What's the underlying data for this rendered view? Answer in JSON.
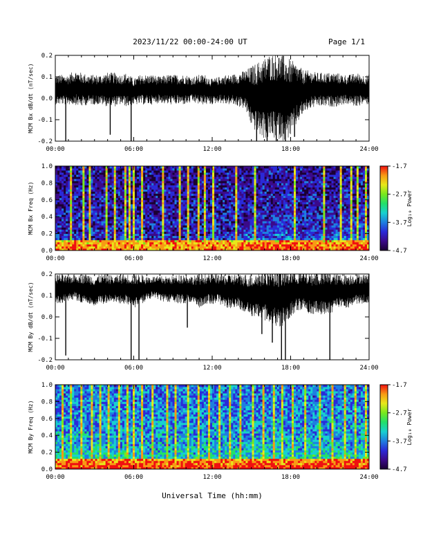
{
  "header": {
    "title": "2023/11/22  00:00-24:00 UT",
    "page": "Page 1/1"
  },
  "footer": {
    "xlabel": "Universal Time (hh:mm)"
  },
  "colors": {
    "trace": "#000000",
    "axis": "#000000",
    "background": "#ffffff"
  },
  "colorbar_colors": [
    "#1a0033",
    "#3b0a8a",
    "#2a2ad8",
    "#1e7fe0",
    "#18d0d0",
    "#22e06a",
    "#78e81e",
    "#e8e81a",
    "#f89a14",
    "#f01010"
  ],
  "chart_data": [
    {
      "type": "line",
      "ylabel": "MCM Bx dB/dt (nT/sec)",
      "xlim": [
        0,
        24
      ],
      "ylim": [
        -0.2,
        0.2
      ],
      "xticks": [
        "00:00",
        "06:00",
        "12:00",
        "18:00",
        "24:00"
      ],
      "yticks": [
        "-0.2",
        "-0.1",
        "0.0",
        "0.1",
        "0.2"
      ],
      "ytick_values": [
        -0.2,
        -0.1,
        0.0,
        0.1,
        0.2
      ],
      "series": [
        {
          "x": [
            0,
            0.5,
            1,
            1.5,
            2,
            2.5,
            3,
            3.5,
            4,
            4.5,
            5,
            5.5,
            6,
            6.5,
            7,
            7.5,
            8,
            8.5,
            9,
            9.5,
            10,
            10.5,
            11,
            11.5,
            12,
            12.5,
            13,
            13.5,
            14,
            14.5,
            15,
            15.5,
            16,
            16.5,
            17,
            17.5,
            18,
            18.5,
            19,
            19.5,
            20,
            20.5,
            21,
            21.5,
            22,
            22.5,
            23,
            23.5,
            24
          ],
          "center": [
            0.04,
            0.04,
            0.04,
            0.05,
            0.04,
            0.04,
            0.04,
            0.04,
            0.04,
            0.04,
            0.04,
            0.04,
            0.03,
            0.04,
            0.04,
            0.04,
            0.04,
            0.04,
            0.04,
            0.04,
            0.04,
            0.04,
            0.04,
            0.04,
            0.03,
            0.04,
            0.04,
            0.04,
            0.04,
            0.04,
            0.01,
            0.0,
            0.0,
            0.01,
            0.01,
            0.0,
            0.0,
            0.02,
            0.03,
            0.04,
            0.04,
            0.04,
            0.04,
            0.04,
            0.04,
            0.04,
            0.04,
            0.04,
            0.04
          ],
          "amplitude": [
            0.07,
            0.07,
            0.07,
            0.08,
            0.08,
            0.07,
            0.07,
            0.07,
            0.08,
            0.08,
            0.07,
            0.08,
            0.06,
            0.07,
            0.07,
            0.07,
            0.06,
            0.07,
            0.07,
            0.07,
            0.07,
            0.06,
            0.07,
            0.07,
            0.06,
            0.06,
            0.07,
            0.07,
            0.08,
            0.09,
            0.14,
            0.17,
            0.19,
            0.2,
            0.2,
            0.2,
            0.18,
            0.14,
            0.1,
            0.09,
            0.08,
            0.08,
            0.08,
            0.08,
            0.07,
            0.07,
            0.08,
            0.07,
            0.07
          ]
        }
      ],
      "spikes": [
        {
          "x": 0.8,
          "y": -0.2
        },
        {
          "x": 4.2,
          "y": -0.17
        },
        {
          "x": 5.8,
          "y": -0.2
        },
        {
          "x": 15.4,
          "y": -0.2
        },
        {
          "x": 16.2,
          "y": -0.2
        },
        {
          "x": 16.9,
          "y": -0.2
        },
        {
          "x": 17.6,
          "y": -0.2
        },
        {
          "x": 18.3,
          "y": -0.18
        }
      ]
    },
    {
      "type": "heatmap",
      "ylabel": "MCM Bx Freq (Hz)",
      "colorbar_label": "Log₁₀ Power",
      "xlim": [
        0,
        24
      ],
      "ylim": [
        0,
        1.0
      ],
      "xticks": [
        "00:00",
        "06:00",
        "12:00",
        "18:00",
        "24:00"
      ],
      "yticks": [
        "0.0",
        "0.2",
        "0.4",
        "0.6",
        "0.8",
        "1.0"
      ],
      "ytick_values": [
        0,
        0.2,
        0.4,
        0.6,
        0.8,
        1.0
      ],
      "colorbar_ticks": [
        "-1.7",
        "-2.7",
        "-3.7",
        "-4.7"
      ],
      "colorbar_tick_values": [
        -1.7,
        -2.7,
        -3.7,
        -4.7
      ],
      "zlim": [
        -4.7,
        -1.7
      ],
      "background_level": -4.2,
      "low_freq_level": -2.3,
      "activity": [
        0.2,
        0.3,
        0.3,
        0.3,
        0.3,
        0.2,
        0.3,
        0.3,
        0.3,
        0.3,
        0.4,
        0.4,
        0.3,
        0.3,
        0.2,
        0.3,
        0.3,
        0.3,
        0.3,
        0.3,
        0.3,
        0.3,
        0.3,
        0.4,
        0.4,
        0.3,
        0.3,
        0.4,
        0.5,
        0.6,
        0.6,
        0.7,
        0.7,
        0.7,
        0.7,
        0.8,
        0.6,
        0.5,
        0.5,
        0.5,
        0.5,
        0.4,
        0.5,
        0.6,
        0.6,
        0.6,
        0.7,
        0.8
      ],
      "streaks": [
        1.2,
        2.0,
        2.6,
        3.8,
        4.5,
        5.2,
        5.6,
        5.9,
        6.6,
        8.1,
        9.5,
        10.1,
        10.9,
        11.3,
        12.0,
        13.8,
        15.2,
        18.2,
        20.4,
        21.8,
        22.5,
        23.1,
        23.7
      ]
    },
    {
      "type": "line",
      "ylabel": "MCM By dB/dt (nT/sec)",
      "xlim": [
        0,
        24
      ],
      "ylim": [
        -0.2,
        0.2
      ],
      "xticks": [
        "00:00",
        "06:00",
        "12:00",
        "18:00",
        "24:00"
      ],
      "yticks": [
        "-0.2",
        "-0.1",
        "0.0",
        "0.1",
        "0.2"
      ],
      "ytick_values": [
        -0.2,
        -0.1,
        0.0,
        0.1,
        0.2
      ],
      "series": [
        {
          "x": [
            0,
            0.5,
            1,
            1.5,
            2,
            2.5,
            3,
            3.5,
            4,
            4.5,
            5,
            5.5,
            6,
            6.5,
            7,
            7.5,
            8,
            8.5,
            9,
            9.5,
            10,
            10.5,
            11,
            11.5,
            12,
            12.5,
            13,
            13.5,
            14,
            14.5,
            15,
            15.5,
            16,
            16.5,
            17,
            17.5,
            18,
            18.5,
            19,
            19.5,
            20,
            20.5,
            21,
            21.5,
            22,
            22.5,
            23,
            23.5,
            24
          ],
          "center": [
            0.13,
            0.13,
            0.13,
            0.14,
            0.13,
            0.13,
            0.12,
            0.13,
            0.13,
            0.13,
            0.13,
            0.13,
            0.12,
            0.13,
            0.13,
            0.14,
            0.13,
            0.13,
            0.13,
            0.13,
            0.13,
            0.13,
            0.12,
            0.13,
            0.13,
            0.13,
            0.12,
            0.12,
            0.12,
            0.11,
            0.1,
            0.1,
            0.1,
            0.1,
            0.09,
            0.09,
            0.11,
            0.12,
            0.12,
            0.11,
            0.11,
            0.11,
            0.11,
            0.12,
            0.12,
            0.12,
            0.13,
            0.13,
            0.13
          ],
          "amplitude": [
            0.07,
            0.07,
            0.06,
            0.06,
            0.07,
            0.07,
            0.07,
            0.07,
            0.07,
            0.06,
            0.07,
            0.07,
            0.08,
            0.07,
            0.06,
            0.05,
            0.06,
            0.06,
            0.06,
            0.07,
            0.07,
            0.06,
            0.08,
            0.07,
            0.07,
            0.07,
            0.08,
            0.08,
            0.08,
            0.09,
            0.1,
            0.11,
            0.12,
            0.13,
            0.14,
            0.13,
            0.11,
            0.09,
            0.09,
            0.1,
            0.1,
            0.1,
            0.1,
            0.08,
            0.08,
            0.08,
            0.07,
            0.07,
            0.07
          ]
        }
      ],
      "spikes": [
        {
          "x": 0.8,
          "y": -0.18
        },
        {
          "x": 5.8,
          "y": -0.2
        },
        {
          "x": 6.4,
          "y": -0.2
        },
        {
          "x": 10.1,
          "y": -0.05
        },
        {
          "x": 15.8,
          "y": -0.08
        },
        {
          "x": 16.6,
          "y": -0.12
        },
        {
          "x": 17.3,
          "y": -0.2
        },
        {
          "x": 17.6,
          "y": -0.2
        },
        {
          "x": 21.0,
          "y": -0.2
        }
      ]
    },
    {
      "type": "heatmap",
      "ylabel": "MCM By Freq (Hz)",
      "colorbar_label": "Log₁₀ Power",
      "xlim": [
        0,
        24
      ],
      "ylim": [
        0,
        1.0
      ],
      "xticks": [
        "00:00",
        "06:00",
        "12:00",
        "18:00",
        "24:00"
      ],
      "yticks": [
        "0.0",
        "0.2",
        "0.4",
        "0.6",
        "0.8",
        "1.0"
      ],
      "ytick_values": [
        0,
        0.2,
        0.4,
        0.6,
        0.8,
        1.0
      ],
      "colorbar_ticks": [
        "-1.7",
        "-2.7",
        "-3.7",
        "-4.7"
      ],
      "colorbar_tick_values": [
        -1.7,
        -2.7,
        -3.7,
        -4.7
      ],
      "zlim": [
        -4.7,
        -1.7
      ],
      "background_level": -3.7,
      "low_freq_level": -2.2,
      "activity": [
        0.6,
        0.6,
        0.7,
        0.6,
        0.6,
        0.6,
        0.7,
        0.6,
        0.6,
        0.6,
        0.7,
        0.6,
        0.6,
        0.5,
        0.5,
        0.5,
        0.5,
        0.5,
        0.5,
        0.6,
        0.6,
        0.5,
        0.6,
        0.6,
        0.6,
        0.5,
        0.6,
        0.6,
        0.6,
        0.6,
        0.6,
        0.7,
        0.6,
        0.6,
        0.6,
        0.6,
        0.6,
        0.6,
        0.6,
        0.6,
        0.6,
        0.6,
        0.6,
        0.6,
        0.6,
        0.6,
        0.7,
        0.7
      ],
      "streaks": [
        0.4,
        1.1,
        1.9,
        2.7,
        3.3,
        4.0,
        4.8,
        5.4,
        5.9,
        6.5,
        7.4,
        8.5,
        9.2,
        10.1,
        10.8,
        11.6,
        12.5,
        13.3,
        14.1,
        15.0,
        15.8,
        16.6,
        17.3,
        18.1,
        19.0,
        20.2,
        21.1,
        22.0,
        22.8,
        23.6
      ]
    }
  ]
}
